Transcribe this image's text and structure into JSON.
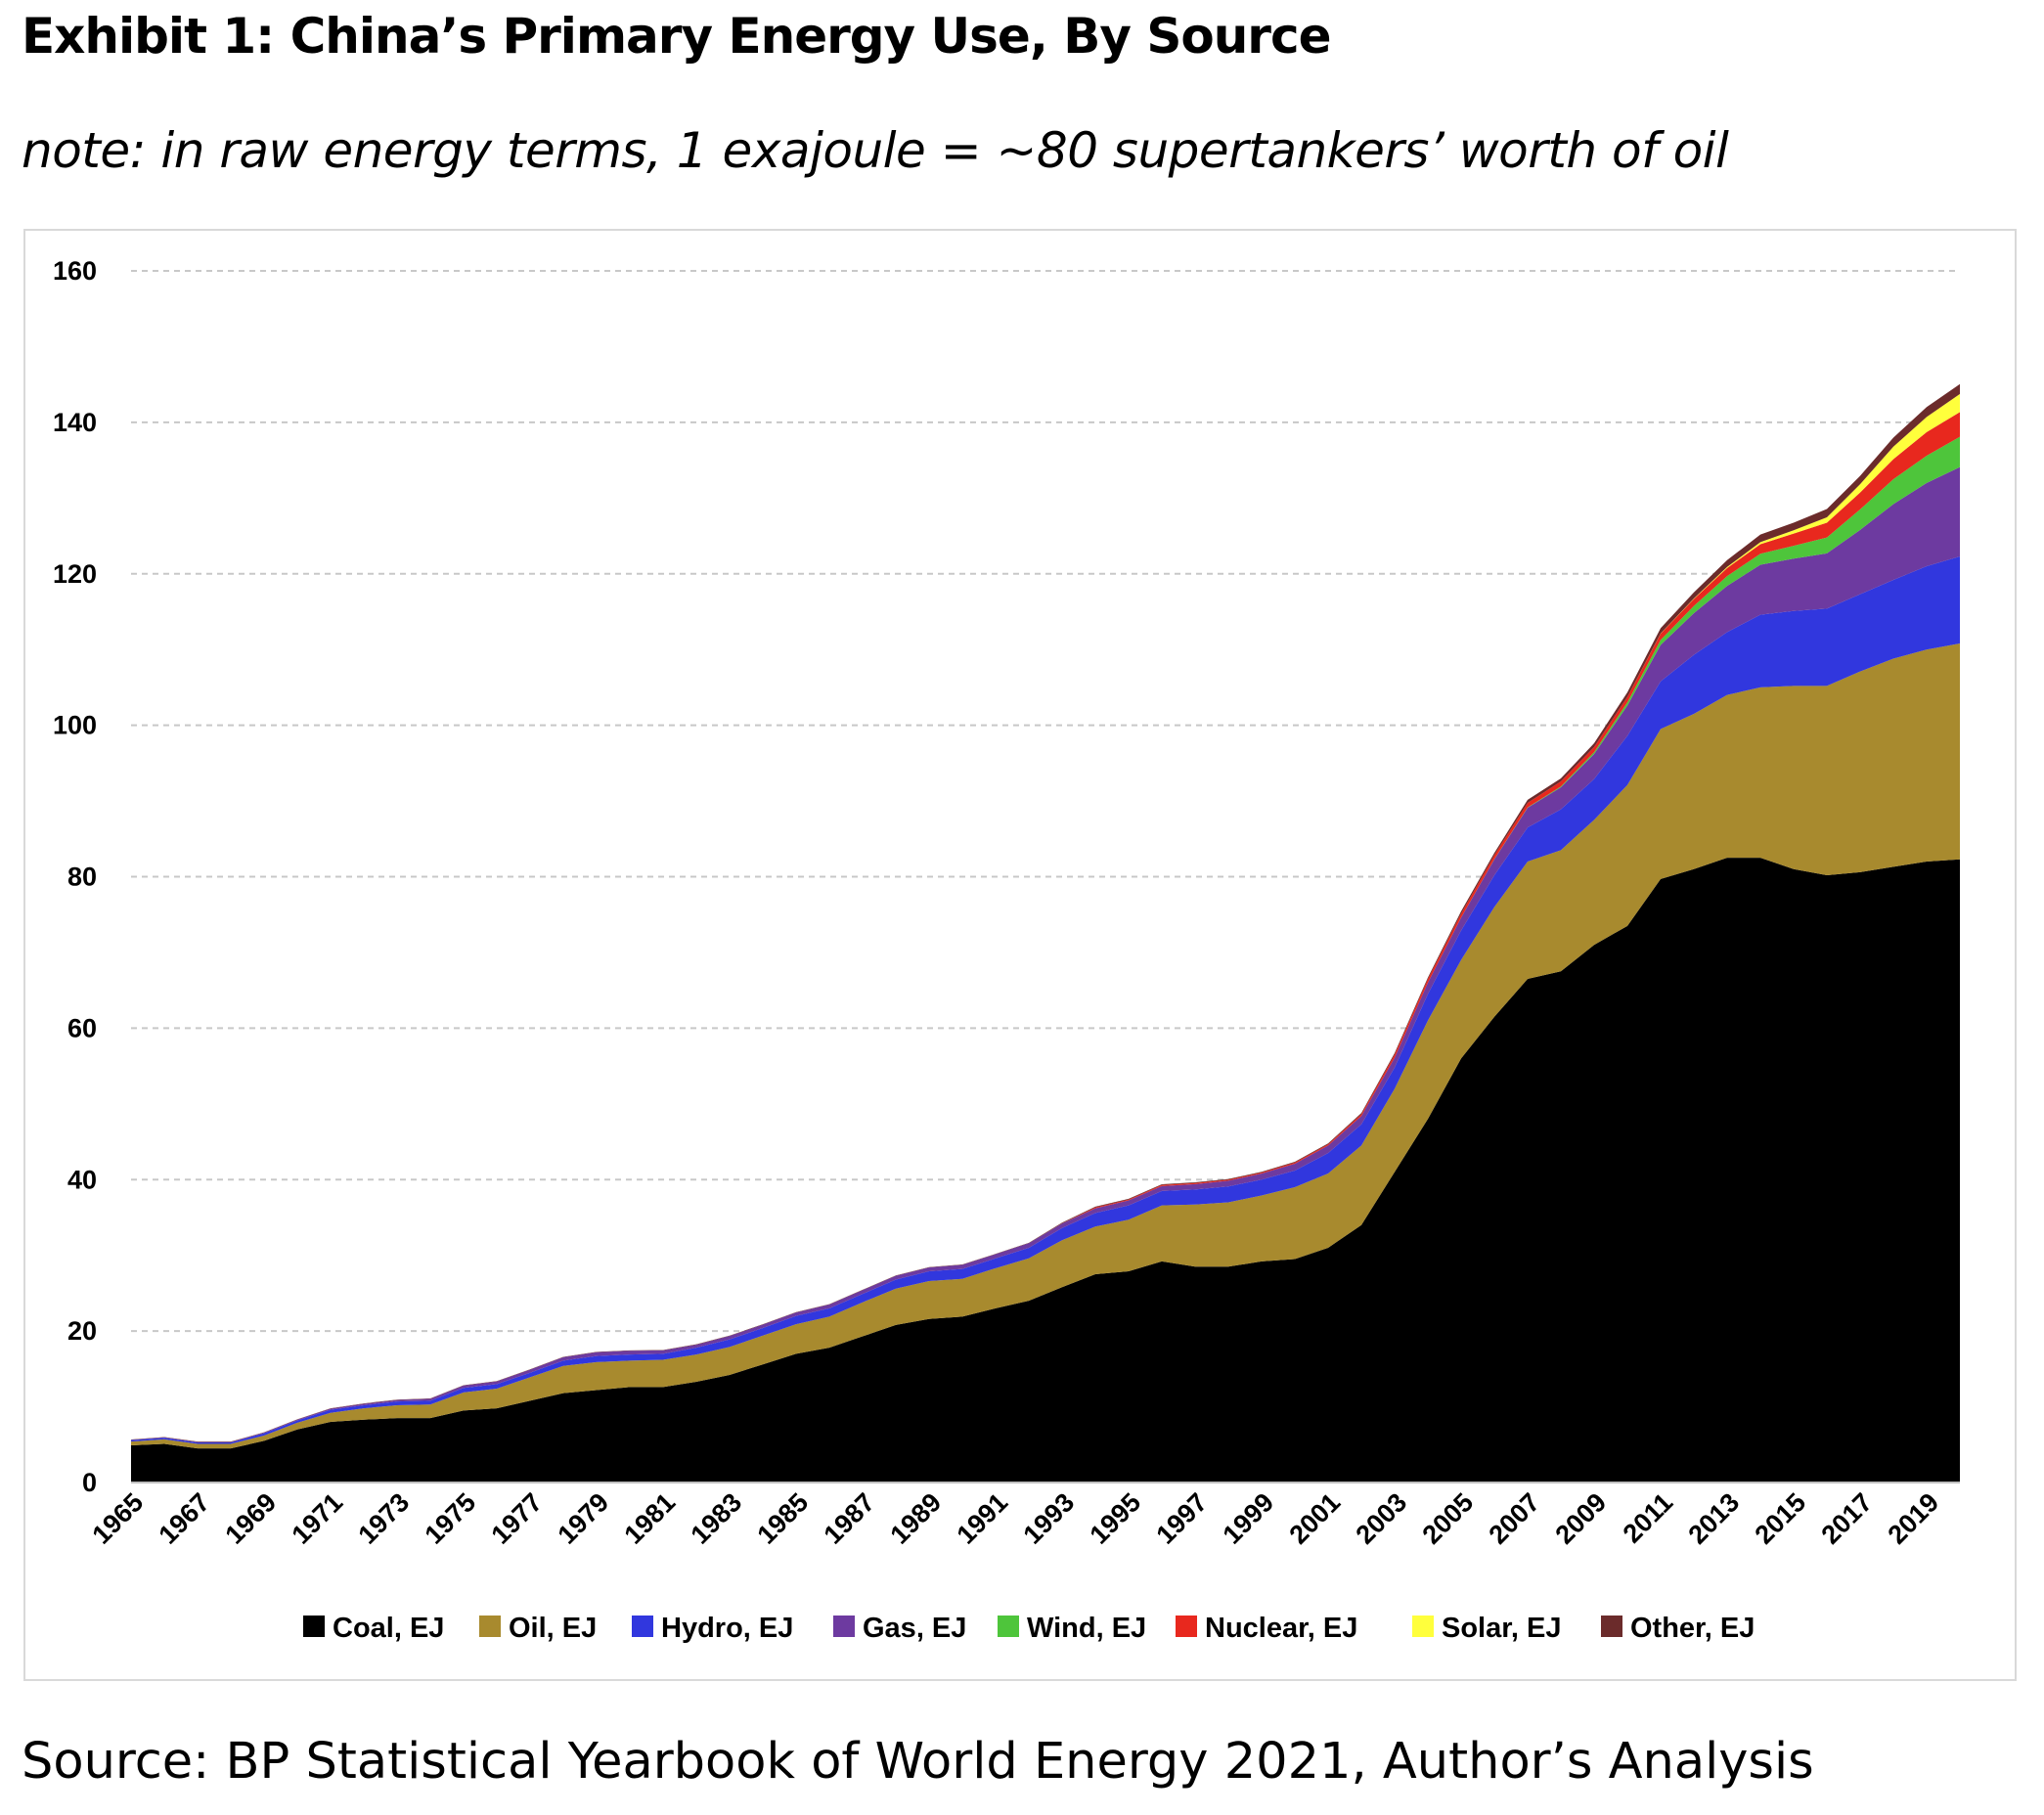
{
  "title": "Exhibit 1: China’s Primary Energy Use, By Source",
  "subtitle": "note: in raw energy terms, 1 exajoule = ~80 supertankers’ worth of oil",
  "source": "Source: BP Statistical Yearbook of World Energy 2021, Author’s Analysis",
  "chart_data": {
    "type": "area",
    "stacked": true,
    "title": "",
    "xlabel": "",
    "ylabel": "",
    "ylim": [
      0,
      160
    ],
    "yticks": [
      "0",
      "20",
      "40",
      "60",
      "80",
      "100",
      "120",
      "140",
      "160"
    ],
    "xtick_labels": [
      "1965",
      "1967",
      "1969",
      "1971",
      "1973",
      "1975",
      "1977",
      "1979",
      "1981",
      "1983",
      "1985",
      "1987",
      "1989",
      "1991",
      "1993",
      "1995",
      "1997",
      "1999",
      "2001",
      "2003",
      "2005",
      "2007",
      "2009",
      "2011",
      "2013",
      "2015",
      "2017",
      "2019"
    ],
    "grid": "horizontal dashed",
    "legend_position": "bottom",
    "x": [
      1965,
      1966,
      1967,
      1968,
      1969,
      1970,
      1971,
      1972,
      1973,
      1974,
      1975,
      1976,
      1977,
      1978,
      1979,
      1980,
      1981,
      1982,
      1983,
      1984,
      1985,
      1986,
      1987,
      1988,
      1989,
      1990,
      1991,
      1992,
      1993,
      1994,
      1995,
      1996,
      1997,
      1998,
      1999,
      2000,
      2001,
      2002,
      2003,
      2004,
      2005,
      2006,
      2007,
      2008,
      2009,
      2010,
      2011,
      2012,
      2013,
      2014,
      2015,
      2016,
      2017,
      2018,
      2019,
      2020
    ],
    "series": [
      {
        "name": "Coal, EJ",
        "color": "#000000",
        "values": [
          4.9,
          5.1,
          4.5,
          4.5,
          5.5,
          7.0,
          8.0,
          8.3,
          8.5,
          8.5,
          9.5,
          9.8,
          10.8,
          11.8,
          12.2,
          12.6,
          12.6,
          13.3,
          14.2,
          15.6,
          17.0,
          17.8,
          19.3,
          20.8,
          21.6,
          21.9,
          23.0,
          24.0,
          25.8,
          27.5,
          27.9,
          29.2,
          28.5,
          28.5,
          29.2,
          29.5,
          31.0,
          34.0,
          41.0,
          48.0,
          56.0,
          61.5,
          66.5,
          67.5,
          71.0,
          73.5,
          79.7,
          81.0,
          82.5,
          82.5,
          81.0,
          80.2,
          80.6,
          81.3,
          82.0,
          82.3
        ]
      },
      {
        "name": "Oil, EJ",
        "color": "#a88a2e",
        "values": [
          0.5,
          0.6,
          0.6,
          0.6,
          0.7,
          0.9,
          1.2,
          1.5,
          1.7,
          1.8,
          2.4,
          2.6,
          3.1,
          3.6,
          3.7,
          3.5,
          3.6,
          3.6,
          3.7,
          3.8,
          3.9,
          4.1,
          4.5,
          4.8,
          5.0,
          5.0,
          5.3,
          5.6,
          6.2,
          6.3,
          6.8,
          7.4,
          8.2,
          8.5,
          8.7,
          9.5,
          9.8,
          10.5,
          11.0,
          13.0,
          13.0,
          14.5,
          15.5,
          16.0,
          16.5,
          18.6,
          19.8,
          20.5,
          21.5,
          22.5,
          24.2,
          25.0,
          26.5,
          27.5,
          28.0,
          28.5
        ]
      },
      {
        "name": "Hydro, EJ",
        "color": "#3137de",
        "values": [
          0.2,
          0.2,
          0.2,
          0.2,
          0.3,
          0.3,
          0.4,
          0.4,
          0.5,
          0.5,
          0.6,
          0.6,
          0.6,
          0.7,
          0.8,
          0.8,
          0.8,
          0.9,
          1.0,
          1.0,
          1.1,
          1.1,
          1.1,
          1.2,
          1.3,
          1.3,
          1.3,
          1.4,
          1.6,
          1.8,
          1.9,
          1.9,
          2.0,
          2.1,
          2.1,
          2.2,
          2.7,
          2.8,
          2.8,
          3.5,
          3.9,
          4.2,
          4.5,
          5.4,
          5.4,
          6.5,
          6.3,
          7.8,
          8.3,
          9.6,
          9.9,
          10.2,
          10.2,
          10.4,
          11.0,
          11.5
        ]
      },
      {
        "name": "Gas, EJ",
        "color": "#6d3aa0",
        "values": [
          0.03,
          0.05,
          0.05,
          0.05,
          0.08,
          0.1,
          0.15,
          0.2,
          0.2,
          0.25,
          0.3,
          0.35,
          0.4,
          0.45,
          0.5,
          0.5,
          0.45,
          0.4,
          0.45,
          0.45,
          0.45,
          0.5,
          0.5,
          0.5,
          0.5,
          0.55,
          0.55,
          0.6,
          0.6,
          0.6,
          0.65,
          0.65,
          0.7,
          0.75,
          0.8,
          0.9,
          1.0,
          1.1,
          1.3,
          1.5,
          1.7,
          2.1,
          2.6,
          2.9,
          3.3,
          4.0,
          4.8,
          5.5,
          6.1,
          6.6,
          6.9,
          7.3,
          8.5,
          10.0,
          11.0,
          11.8
        ]
      },
      {
        "name": "Wind, EJ",
        "color": "#4ec53b",
        "values": [
          0,
          0,
          0,
          0,
          0,
          0,
          0,
          0,
          0,
          0,
          0,
          0,
          0,
          0,
          0,
          0,
          0,
          0,
          0,
          0,
          0,
          0,
          0,
          0,
          0,
          0,
          0,
          0,
          0,
          0,
          0,
          0,
          0,
          0,
          0,
          0,
          0,
          0,
          0,
          0,
          0.01,
          0.02,
          0.05,
          0.12,
          0.25,
          0.43,
          0.66,
          0.95,
          1.3,
          1.45,
          1.7,
          2.1,
          2.7,
          3.3,
          3.6,
          4.0
        ]
      },
      {
        "name": "Nuclear, EJ",
        "color": "#e8281e",
        "values": [
          0,
          0,
          0,
          0,
          0,
          0,
          0,
          0,
          0,
          0,
          0,
          0,
          0,
          0,
          0,
          0,
          0,
          0,
          0,
          0,
          0,
          0,
          0,
          0,
          0,
          0,
          0,
          0,
          0.02,
          0.13,
          0.12,
          0.14,
          0.14,
          0.13,
          0.14,
          0.16,
          0.17,
          0.24,
          0.41,
          0.49,
          0.52,
          0.53,
          0.6,
          0.66,
          0.67,
          0.71,
          0.83,
          0.93,
          1.06,
          1.26,
          1.61,
          1.95,
          2.23,
          2.64,
          3.11,
          3.25
        ]
      },
      {
        "name": "Solar, EJ",
        "color": "#ffff3c",
        "values": [
          0,
          0,
          0,
          0,
          0,
          0,
          0,
          0,
          0,
          0,
          0,
          0,
          0,
          0,
          0,
          0,
          0,
          0,
          0,
          0,
          0,
          0,
          0,
          0,
          0,
          0,
          0,
          0,
          0,
          0,
          0,
          0,
          0,
          0,
          0,
          0,
          0,
          0,
          0,
          0,
          0,
          0,
          0,
          0,
          0,
          0.01,
          0.03,
          0.06,
          0.14,
          0.27,
          0.44,
          0.7,
          1.1,
          1.65,
          2.0,
          2.4
        ]
      },
      {
        "name": "Other, EJ",
        "color": "#6b2b2b",
        "values": [
          0.05,
          0.05,
          0.05,
          0.05,
          0.05,
          0.05,
          0.05,
          0.05,
          0.05,
          0.05,
          0.05,
          0.05,
          0.05,
          0.05,
          0.05,
          0.05,
          0.05,
          0.05,
          0.05,
          0.05,
          0.05,
          0.05,
          0.05,
          0.05,
          0.05,
          0.05,
          0.05,
          0.05,
          0.1,
          0.1,
          0.1,
          0.1,
          0.1,
          0.1,
          0.1,
          0.1,
          0.1,
          0.15,
          0.2,
          0.2,
          0.3,
          0.3,
          0.4,
          0.4,
          0.5,
          0.6,
          0.7,
          0.8,
          0.9,
          1.0,
          1.0,
          1.1,
          1.1,
          1.2,
          1.3,
          1.3
        ]
      }
    ]
  }
}
